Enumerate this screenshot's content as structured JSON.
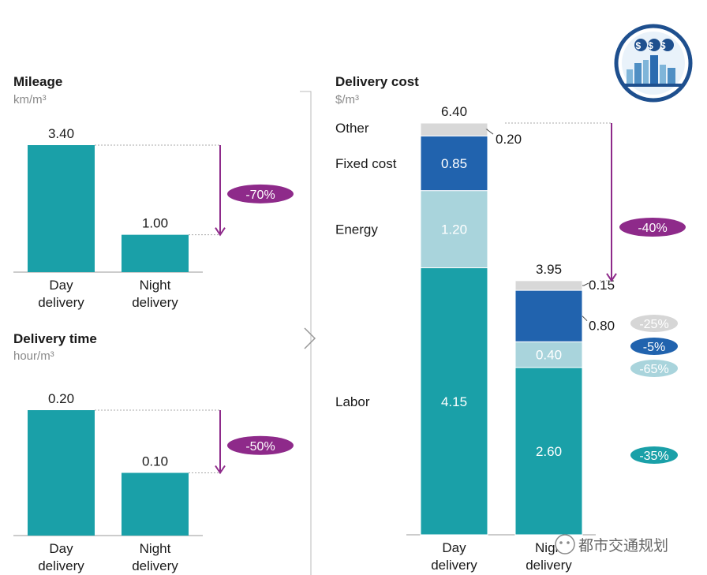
{
  "colors": {
    "labor": "#1aa0a8",
    "energy": "#a9d4dc",
    "fixed": "#2163ae",
    "other": "#d8d8d8",
    "arrow": "#8e2a8a",
    "pill_purple": "#8e2a8a",
    "pill_other": "#d6d6d6",
    "pill_fixed": "#2163ae",
    "pill_energy": "#a9d4dc",
    "pill_labor": "#1aa0a8"
  },
  "watermark": {
    "text": "都市交通规划",
    "logo_text": "$$$"
  },
  "chart_data": [
    {
      "type": "bar",
      "title": "Mileage",
      "ylabel": "km/m³",
      "categories": [
        "Day delivery",
        "Night delivery"
      ],
      "category_lines": [
        [
          "Day",
          "delivery"
        ],
        [
          "Night",
          "delivery"
        ]
      ],
      "values": [
        3.4,
        1.0
      ],
      "value_labels": [
        "3.40",
        "1.00"
      ],
      "change_label": "-70%",
      "ylim": [
        0,
        3.4
      ]
    },
    {
      "type": "bar",
      "title": "Delivery time",
      "ylabel": "hour/m³",
      "categories": [
        "Day delivery",
        "Night delivery"
      ],
      "category_lines": [
        [
          "Day",
          "delivery"
        ],
        [
          "Night",
          "delivery"
        ]
      ],
      "values": [
        0.2,
        0.1
      ],
      "value_labels": [
        "0.20",
        "0.10"
      ],
      "change_label": "-50%",
      "ylim": [
        0,
        0.2
      ]
    },
    {
      "type": "bar",
      "stacked": true,
      "title": "Delivery cost",
      "ylabel": "$/m³",
      "categories": [
        "Day delivery",
        "Night delivery"
      ],
      "category_lines": [
        [
          "Day",
          "delivery"
        ],
        [
          "Nigh",
          "delivery"
        ]
      ],
      "totals": [
        6.4,
        3.95
      ],
      "total_labels": [
        "6.40",
        "3.95"
      ],
      "series": [
        {
          "name": "Labor",
          "key": "labor",
          "values": [
            4.15,
            2.6
          ],
          "labels": [
            "4.15",
            "2.60"
          ],
          "change_label": "-35%"
        },
        {
          "name": "Energy",
          "key": "energy",
          "values": [
            1.2,
            0.4
          ],
          "labels": [
            "1.20",
            "0.40"
          ],
          "change_label": "-65%"
        },
        {
          "name": "Fixed cost",
          "key": "fixed",
          "values": [
            0.85,
            0.8
          ],
          "labels": [
            "0.85",
            "0.80"
          ],
          "change_label": "-5%"
        },
        {
          "name": "Other",
          "key": "other",
          "values": [
            0.2,
            0.15
          ],
          "labels": [
            "0.20",
            "0.15"
          ],
          "change_label": "-25%"
        }
      ],
      "change_label": "-40%",
      "ylim": [
        0,
        6.4
      ]
    }
  ]
}
